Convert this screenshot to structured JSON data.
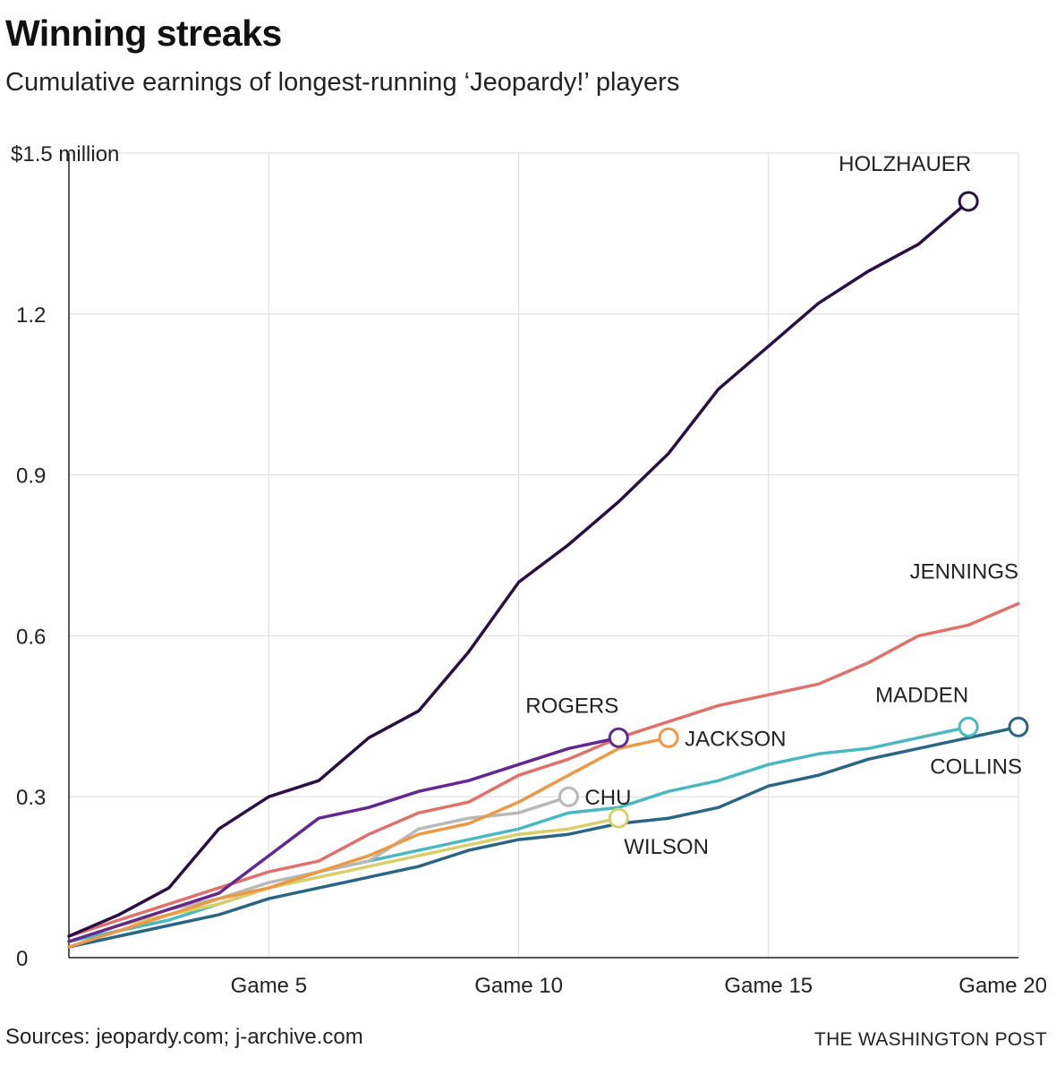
{
  "header": {
    "title": "Winning streaks",
    "subtitle": "Cumulative earnings of longest-running ‘Jeopardy!’ players"
  },
  "footer": {
    "source": "Sources: jeopardy.com; j-archive.com",
    "credit": "THE WASHINGTON POST"
  },
  "chart_data": {
    "type": "line",
    "title": "Winning streaks",
    "subtitle": "Cumulative earnings of longest-running ‘Jeopardy!’ players",
    "xlabel": "",
    "ylabel": "",
    "xlim": [
      1,
      20
    ],
    "ylim": [
      0,
      1.5
    ],
    "unit": "million dollars",
    "grid": true,
    "legend": "direct labels at line ends",
    "x_ticks": [
      {
        "value": 5,
        "label": "Game 5"
      },
      {
        "value": 10,
        "label": "Game 10"
      },
      {
        "value": 15,
        "label": "Game 15"
      },
      {
        "value": 20,
        "label": "Game 20"
      }
    ],
    "y_ticks": [
      {
        "value": 0,
        "label": "0"
      },
      {
        "value": 0.3,
        "label": "0.3"
      },
      {
        "value": 0.6,
        "label": "0.6"
      },
      {
        "value": 0.9,
        "label": "0.9"
      },
      {
        "value": 1.2,
        "label": "1.2"
      },
      {
        "value": 1.5,
        "label": "$1.5 million"
      }
    ],
    "series": [
      {
        "name": "JENNINGS",
        "color": "#e0706a",
        "end_marker": false,
        "label_pos": "above-left",
        "values": [
          0.04,
          0.07,
          0.1,
          0.13,
          0.16,
          0.18,
          0.23,
          0.27,
          0.29,
          0.34,
          0.37,
          0.41,
          0.44,
          0.47,
          0.49,
          0.51,
          0.55,
          0.6,
          0.62,
          0.66
        ]
      },
      {
        "name": "COLLINS",
        "color": "#2b6584",
        "end_marker": true,
        "label_pos": "below-left",
        "values": [
          0.02,
          0.04,
          0.06,
          0.08,
          0.11,
          0.13,
          0.15,
          0.17,
          0.2,
          0.22,
          0.23,
          0.25,
          0.26,
          0.28,
          0.32,
          0.34,
          0.37,
          0.39,
          0.41,
          0.43
        ]
      },
      {
        "name": "MADDEN",
        "color": "#4bb8c1",
        "end_marker": true,
        "label_pos": "above-left",
        "values": [
          0.03,
          0.05,
          0.07,
          0.1,
          0.13,
          0.16,
          0.18,
          0.2,
          0.22,
          0.24,
          0.27,
          0.28,
          0.31,
          0.33,
          0.36,
          0.38,
          0.39,
          0.41,
          0.43
        ]
      },
      {
        "name": "WILSON",
        "color": "#d6cf6a",
        "end_marker": true,
        "label_pos": "below-right",
        "values": [
          0.03,
          0.06,
          0.08,
          0.1,
          0.13,
          0.15,
          0.17,
          0.19,
          0.21,
          0.23,
          0.24,
          0.26
        ]
      },
      {
        "name": "CHU",
        "color": "#b8b8b8",
        "end_marker": true,
        "label_pos": "right",
        "values": [
          0.03,
          0.06,
          0.09,
          0.11,
          0.14,
          0.16,
          0.18,
          0.24,
          0.26,
          0.27,
          0.3
        ]
      },
      {
        "name": "JACKSON",
        "color": "#ec9845",
        "end_marker": true,
        "label_pos": "right",
        "values": [
          0.02,
          0.05,
          0.08,
          0.11,
          0.13,
          0.16,
          0.19,
          0.23,
          0.25,
          0.29,
          0.34,
          0.39,
          0.41
        ]
      },
      {
        "name": "ROGERS",
        "color": "#63278f",
        "end_marker": true,
        "label_pos": "above-left",
        "values": [
          0.03,
          0.06,
          0.09,
          0.12,
          0.19,
          0.26,
          0.28,
          0.31,
          0.33,
          0.36,
          0.39,
          0.41
        ]
      },
      {
        "name": "HOLZHAUER",
        "color": "#2a0f45",
        "end_marker": true,
        "label_pos": "above",
        "values": [
          0.04,
          0.08,
          0.13,
          0.24,
          0.3,
          0.33,
          0.41,
          0.46,
          0.57,
          0.7,
          0.77,
          0.85,
          0.94,
          1.06,
          1.14,
          1.22,
          1.28,
          1.33,
          1.41
        ]
      }
    ]
  }
}
